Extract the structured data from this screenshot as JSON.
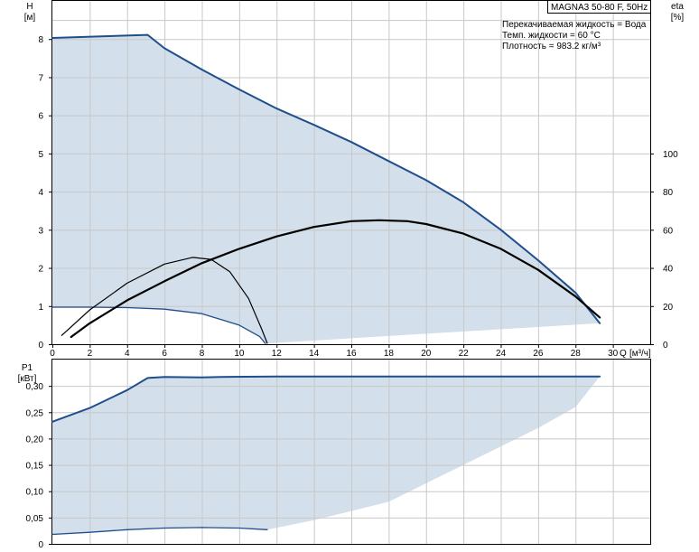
{
  "info_box": {
    "model": "MAGNA3 50-80 F, 50Hz",
    "liquid": "Перекачиваемая жидкость = Вода",
    "temperature": "Темп. жидкости = 60 °C",
    "density": "Плотность = 983.2 кг/м³"
  },
  "colors": {
    "envelope_fill": "#d3dfea",
    "curve_blue": "#1f4e8c",
    "curve_black": "#000000",
    "grid": "#c8c8c8",
    "axis": "#000000"
  },
  "chart_data": [
    {
      "id": "head",
      "type": "area",
      "y_label": "H",
      "y_unit": "[м]",
      "y2_label": "eta",
      "y2_unit": "[%]",
      "x_label": "Q",
      "x_unit": "[м³/ч]",
      "xlim": [
        0,
        32
      ],
      "ylim": [
        0,
        9
      ],
      "y2lim": [
        0,
        180
      ],
      "x_ticks": [
        0,
        2,
        4,
        6,
        8,
        10,
        12,
        14,
        16,
        18,
        20,
        22,
        24,
        26,
        28,
        30
      ],
      "y_ticks": [
        0,
        1,
        2,
        3,
        4,
        5,
        6,
        7,
        8
      ],
      "y2_ticks": [
        0,
        20,
        40,
        60,
        80,
        100
      ],
      "grid": true,
      "series": [
        {
          "role": "max-head-curve",
          "color": "#1f4e8c",
          "points": [
            [
              0,
              8.03
            ],
            [
              5.1,
              8.11
            ],
            [
              6,
              7.76
            ],
            [
              8,
              7.2
            ],
            [
              10,
              6.68
            ],
            [
              12,
              6.18
            ],
            [
              14,
              5.75
            ],
            [
              16,
              5.3
            ],
            [
              18,
              4.8
            ],
            [
              20,
              4.3
            ],
            [
              22,
              3.72
            ],
            [
              24,
              3.0
            ],
            [
              26,
              2.2
            ],
            [
              28,
              1.35
            ],
            [
              29.3,
              0.55
            ]
          ]
        },
        {
          "role": "min-head-curve",
          "color": "#1f4e8c",
          "points": [
            [
              0,
              0.97
            ],
            [
              2,
              0.97
            ],
            [
              4,
              0.96
            ],
            [
              6,
              0.92
            ],
            [
              8,
              0.8
            ],
            [
              10,
              0.5
            ],
            [
              11.1,
              0.2
            ],
            [
              11.4,
              0.02
            ]
          ]
        },
        {
          "role": "efficiency-max",
          "axis": "y2",
          "color": "#000000",
          "points": [
            [
              1,
              3.8
            ],
            [
              2,
              11
            ],
            [
              4,
              23
            ],
            [
              6,
              33
            ],
            [
              8,
              42.5
            ],
            [
              10,
              50
            ],
            [
              12,
              56.5
            ],
            [
              14,
              61.5
            ],
            [
              16,
              64.5
            ],
            [
              17.5,
              65
            ],
            [
              19,
              64.5
            ],
            [
              20,
              63
            ],
            [
              22,
              58
            ],
            [
              24,
              50
            ],
            [
              26,
              39
            ],
            [
              28,
              25
            ],
            [
              29.3,
              14
            ]
          ]
        },
        {
          "role": "efficiency-min",
          "axis": "y2",
          "color": "#000000",
          "points": [
            [
              0.5,
              4.6
            ],
            [
              2,
              18
            ],
            [
              4,
              32
            ],
            [
              6,
              42
            ],
            [
              7.5,
              45.5
            ],
            [
              8.5,
              44.5
            ],
            [
              9.5,
              38
            ],
            [
              10.5,
              24
            ],
            [
              11.2,
              8
            ],
            [
              11.5,
              0.5
            ]
          ]
        }
      ]
    },
    {
      "id": "power",
      "type": "area",
      "y_label": "P1",
      "y_unit": "[кВт]",
      "xlim": [
        0,
        32
      ],
      "ylim": [
        0,
        0.35
      ],
      "y_ticks": [
        0,
        0.05,
        0.1,
        0.15,
        0.2,
        0.25,
        0.3
      ],
      "y_tick_labels": [
        "0",
        "0,05",
        "0,10",
        "0,15",
        "0,20",
        "0,25",
        "0,30"
      ],
      "grid": true,
      "series": [
        {
          "role": "power-max",
          "color": "#1f4e8c",
          "points": [
            [
              0,
              0.232
            ],
            [
              2,
              0.258
            ],
            [
              4,
              0.292
            ],
            [
              5.1,
              0.315
            ],
            [
              6,
              0.317
            ],
            [
              8,
              0.316
            ],
            [
              9,
              0.317
            ],
            [
              12,
              0.318
            ],
            [
              16,
              0.318
            ],
            [
              20,
              0.318
            ],
            [
              24,
              0.318
            ],
            [
              28,
              0.318
            ],
            [
              29.3,
              0.318
            ]
          ]
        },
        {
          "role": "power-min",
          "color": "#1f4e8c",
          "points": [
            [
              0,
              0.018
            ],
            [
              2,
              0.022
            ],
            [
              4,
              0.027
            ],
            [
              6,
              0.03
            ],
            [
              8,
              0.031
            ],
            [
              10,
              0.03
            ],
            [
              11.5,
              0.027
            ]
          ]
        },
        {
          "role": "power-envelope-lower",
          "color": "#d3dfea",
          "points": [
            [
              11.5,
              0.027
            ],
            [
              14,
              0.045
            ],
            [
              18,
              0.08
            ],
            [
              22,
              0.15
            ],
            [
              26,
              0.22
            ],
            [
              28,
              0.26
            ],
            [
              29.3,
              0.318
            ]
          ]
        }
      ]
    }
  ]
}
